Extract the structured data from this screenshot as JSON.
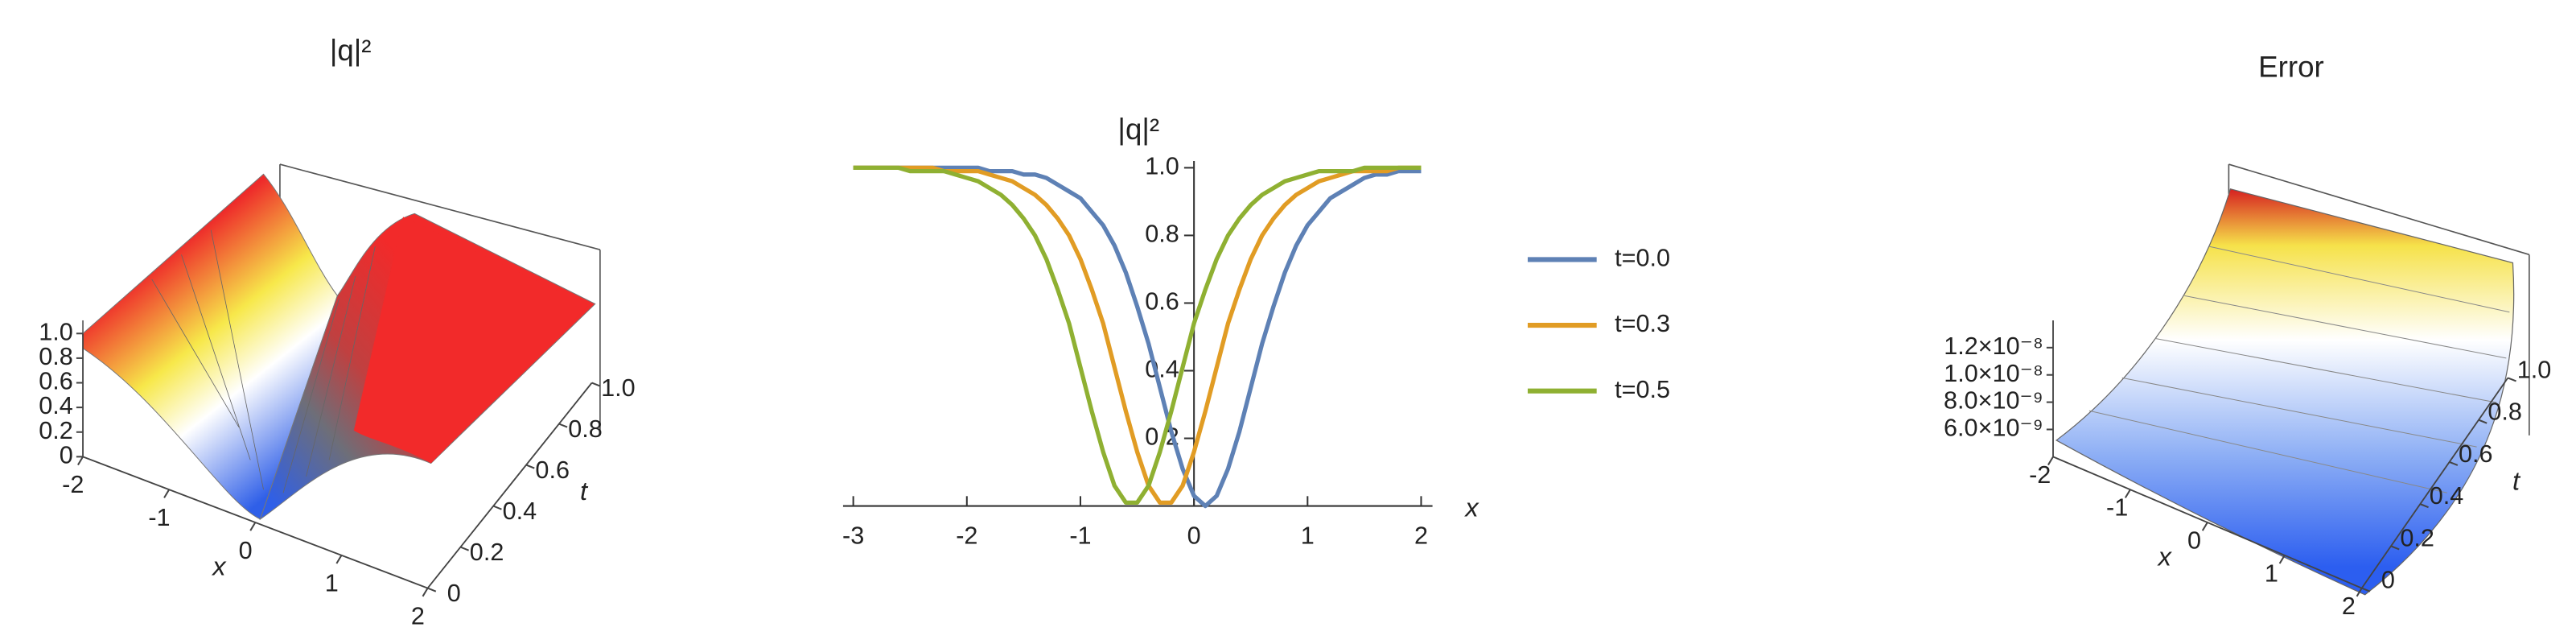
{
  "chart_data": [
    {
      "type": "surface3d",
      "title": "|q|²",
      "x_label": "x",
      "y_label": "t",
      "xlim": [
        -2,
        2
      ],
      "xticks": [
        -2,
        -1,
        0,
        1,
        2
      ],
      "ylim": [
        0,
        1
      ],
      "yticks": [
        0,
        0.2,
        0.4,
        0.6,
        0.8,
        {
          "value": 1,
          "label": "1.0"
        }
      ],
      "zlim": [
        0,
        1
      ],
      "zticks": [
        0,
        0.2,
        0.4,
        0.6,
        0.8,
        {
          "value": 1,
          "label": "1.0"
        }
      ]
    },
    {
      "type": "line",
      "y_label": "|q|²",
      "x_label": "x",
      "x": [
        -3,
        -2.9,
        -2.8,
        -2.7,
        -2.6,
        -2.5,
        -2.4,
        -2.3,
        -2.2,
        -2.1,
        -2,
        -1.9,
        -1.8,
        -1.7,
        -1.6,
        -1.5,
        -1.4,
        -1.3,
        -1.2,
        -1.1,
        -1,
        -0.9,
        -0.8,
        -0.7,
        -0.6,
        -0.5,
        -0.4,
        -0.3,
        -0.2,
        -0.1,
        0,
        0.1,
        0.2,
        0.3,
        0.4,
        0.5,
        0.6,
        0.7,
        0.8,
        0.9,
        1,
        1.1,
        1.2,
        1.3,
        1.4,
        1.5,
        1.6,
        1.7,
        1.8,
        1.9,
        2
      ],
      "series": [
        {
          "name": "t=0.0",
          "color": "#5e81b5",
          "values": [
            1,
            1,
            1,
            1,
            1,
            1,
            1,
            1,
            1,
            1,
            1,
            1,
            0.99,
            0.99,
            0.99,
            0.98,
            0.98,
            0.97,
            0.95,
            0.93,
            0.91,
            0.87,
            0.83,
            0.77,
            0.69,
            0.59,
            0.48,
            0.35,
            0.22,
            0.11,
            0.03,
            0,
            0.03,
            0.11,
            0.22,
            0.35,
            0.48,
            0.59,
            0.69,
            0.77,
            0.83,
            0.87,
            0.91,
            0.93,
            0.95,
            0.97,
            0.98,
            0.98,
            0.99,
            0.99,
            0.99
          ]
        },
        {
          "name": "t=0.3",
          "color": "#e19c24",
          "values": [
            1,
            1,
            1,
            1,
            1,
            1,
            1,
            1,
            0.99,
            0.99,
            0.99,
            0.99,
            0.98,
            0.97,
            0.96,
            0.94,
            0.92,
            0.89,
            0.85,
            0.8,
            0.73,
            0.64,
            0.54,
            0.41,
            0.28,
            0.16,
            0.06,
            0.01,
            0.01,
            0.06,
            0.16,
            0.28,
            0.41,
            0.54,
            0.64,
            0.73,
            0.8,
            0.85,
            0.89,
            0.92,
            0.94,
            0.96,
            0.97,
            0.98,
            0.99,
            0.99,
            0.99,
            0.99,
            1,
            1,
            1
          ]
        },
        {
          "name": "t=0.5",
          "color": "#8fb032",
          "values": [
            1,
            1,
            1,
            1,
            1,
            0.99,
            0.99,
            0.99,
            0.99,
            0.98,
            0.97,
            0.96,
            0.94,
            0.92,
            0.89,
            0.85,
            0.8,
            0.73,
            0.64,
            0.54,
            0.41,
            0.28,
            0.16,
            0.06,
            0.01,
            0.01,
            0.06,
            0.16,
            0.28,
            0.41,
            0.54,
            0.64,
            0.73,
            0.8,
            0.85,
            0.89,
            0.92,
            0.94,
            0.96,
            0.97,
            0.98,
            0.99,
            0.99,
            0.99,
            0.99,
            1,
            1,
            1,
            1,
            1,
            1
          ]
        }
      ],
      "xlim": [
        -3.09,
        2.1
      ],
      "xticks": [
        -3,
        -2,
        -1,
        0,
        1,
        2
      ],
      "ylim": [
        0,
        1.02
      ],
      "yticks": [
        0.2,
        0.4,
        0.6,
        0.8,
        {
          "value": 1,
          "label": "1.0"
        }
      ],
      "legend": "right"
    },
    {
      "type": "surface3d",
      "title": "Error",
      "x_label": "x",
      "y_label": "t",
      "xlim": [
        -2,
        2
      ],
      "xticks": [
        -2,
        -1,
        0,
        1,
        2
      ],
      "ylim": [
        0,
        1
      ],
      "yticks": [
        0,
        0.2,
        0.4,
        0.6,
        0.8,
        {
          "value": 1,
          "label": "1.0"
        }
      ],
      "zlim": [
        4e-09,
        1.4e-08
      ],
      "zticks": [
        {
          "value": 6e-09,
          "label": "6.0×10⁻⁹"
        },
        {
          "value": 8e-09,
          "label": "8.0×10⁻⁹"
        },
        {
          "value": 1e-08,
          "label": "1.0×10⁻⁸"
        },
        {
          "value": 1.2e-08,
          "label": "1.2×10⁻⁸"
        }
      ]
    }
  ]
}
